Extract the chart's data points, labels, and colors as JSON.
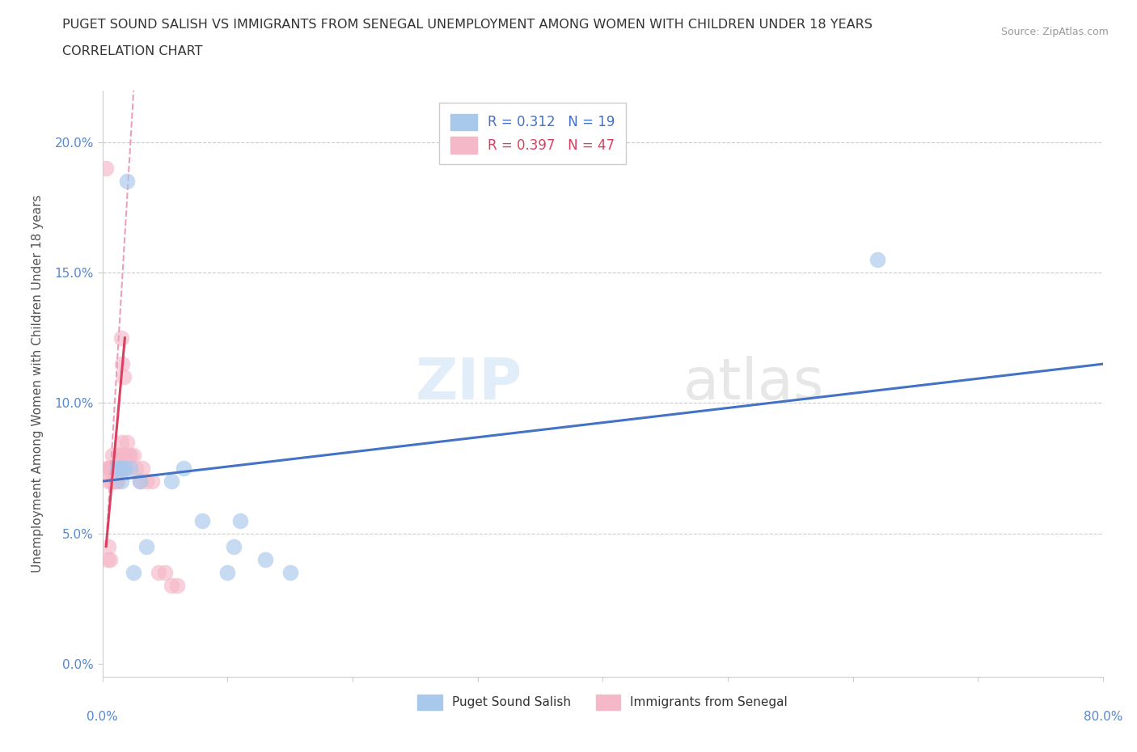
{
  "title_line1": "PUGET SOUND SALISH VS IMMIGRANTS FROM SENEGAL UNEMPLOYMENT AMONG WOMEN WITH CHILDREN UNDER 18 YEARS",
  "title_line2": "CORRELATION CHART",
  "source": "Source: ZipAtlas.com",
  "ylabel": "Unemployment Among Women with Children Under 18 years",
  "yticks": [
    "0.0%",
    "5.0%",
    "10.0%",
    "15.0%",
    "20.0%"
  ],
  "ytick_vals": [
    0,
    5,
    10,
    15,
    20
  ],
  "xtick_left": "0.0%",
  "xtick_right": "80.0%",
  "xlim": [
    0,
    80
  ],
  "ylim": [
    -0.5,
    22
  ],
  "r_blue": 0.312,
  "n_blue": 19,
  "r_pink": 0.397,
  "n_pink": 47,
  "legend1_label": "Puget Sound Salish",
  "legend2_label": "Immigrants from Senegal",
  "watermark_zip": "ZIP",
  "watermark_atlas": "atlas",
  "blue_color": "#A8C8EC",
  "pink_color": "#F5B8C8",
  "blue_line_color": "#4472C4",
  "pink_line_color": "#D94060",
  "pink_dash_color": "#ECA0B8",
  "blue_scatter_x": [
    1.2,
    1.5,
    1.8,
    2.0,
    2.2,
    3.0,
    5.5,
    6.5,
    8.0,
    10.0,
    11.0,
    13.0,
    15.0,
    62.0,
    1.5,
    1.3,
    2.5,
    3.5,
    10.5
  ],
  "blue_scatter_y": [
    7.5,
    7.5,
    7.5,
    18.5,
    7.5,
    7.0,
    7.0,
    7.5,
    5.5,
    3.5,
    5.5,
    4.0,
    3.5,
    15.5,
    7.0,
    7.5,
    3.5,
    4.5,
    4.5
  ],
  "pink_scatter_x": [
    0.3,
    0.4,
    0.5,
    0.5,
    0.5,
    0.6,
    0.6,
    0.7,
    0.7,
    0.8,
    0.8,
    0.9,
    0.9,
    1.0,
    1.0,
    1.1,
    1.1,
    1.2,
    1.2,
    1.3,
    1.3,
    1.3,
    1.4,
    1.4,
    1.5,
    1.5,
    1.5,
    1.6,
    1.6,
    1.7,
    1.7,
    1.8,
    1.9,
    2.0,
    2.1,
    2.2,
    2.5,
    2.7,
    3.0,
    3.2,
    3.5,
    4.0,
    4.5,
    5.0,
    5.5,
    6.0,
    0.4
  ],
  "pink_scatter_y": [
    19.0,
    7.5,
    7.5,
    7.0,
    4.5,
    7.5,
    4.0,
    7.5,
    7.0,
    8.0,
    7.5,
    7.5,
    7.0,
    7.5,
    7.0,
    7.5,
    7.0,
    7.5,
    7.0,
    7.5,
    8.0,
    7.5,
    8.0,
    7.5,
    12.5,
    8.5,
    7.5,
    11.5,
    7.5,
    11.0,
    7.5,
    8.0,
    7.5,
    8.5,
    8.0,
    8.0,
    8.0,
    7.5,
    7.0,
    7.5,
    7.0,
    7.0,
    3.5,
    3.5,
    3.0,
    3.0,
    4.0
  ],
  "blue_line_x0": 0,
  "blue_line_y0": 7.0,
  "blue_line_x1": 80,
  "blue_line_y1": 11.5,
  "pink_solid_x0": 0.3,
  "pink_solid_y0": 4.5,
  "pink_solid_x1": 1.8,
  "pink_solid_y1": 12.5,
  "pink_dash_x0": 0.3,
  "pink_dash_y0": 4.5,
  "pink_dash_x1": 2.5,
  "pink_dash_y1": 22.0
}
